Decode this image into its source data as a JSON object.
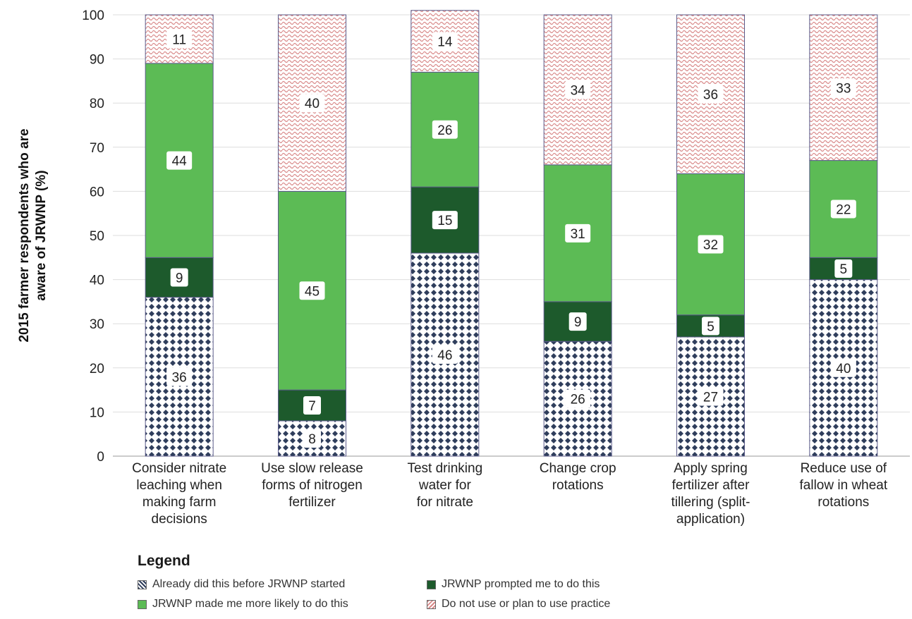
{
  "chart_data": {
    "type": "bar",
    "stacked": true,
    "ylabel": "2015 farmer respondents who are aware of JRWNP (%)",
    "ylim": [
      0,
      100
    ],
    "yticks": [
      0,
      10,
      20,
      30,
      40,
      50,
      60,
      70,
      80,
      90,
      100
    ],
    "grid": true,
    "categories": [
      "Consider nitrate leaching when making farm decisions",
      "Use slow release forms of nitrogen fertilizer",
      "Test drinking water for for nitrate",
      "Change crop rotations",
      "Apply spring fertilizer after tillering (split-application)",
      "Reduce use of fallow in wheat rotations"
    ],
    "category_lines": [
      [
        "Consider nitrate",
        "leaching when",
        "making farm",
        "decisions"
      ],
      [
        "Use slow release",
        "forms of nitrogen",
        "fertilizer"
      ],
      [
        "Test drinking",
        "water for",
        "for nitrate"
      ],
      [
        "Change crop",
        "rotations"
      ],
      [
        "Apply spring",
        "fertilizer after",
        "tillering (split-",
        "application)"
      ],
      [
        "Reduce use of",
        "fallow in wheat",
        "rotations"
      ]
    ],
    "series": [
      {
        "name": "Already did this before JRWNP started",
        "values": [
          36,
          8,
          46,
          26,
          27,
          40
        ],
        "color": "#2f3e5c",
        "pattern": "dots"
      },
      {
        "name": "JRWNP prompted me to do this",
        "values": [
          9,
          7,
          15,
          9,
          5,
          5
        ],
        "color": "#1d5a2c",
        "pattern": "solid"
      },
      {
        "name": "JRWNP made me more likely to do this",
        "values": [
          44,
          45,
          26,
          31,
          32,
          22
        ],
        "color": "#5cbb55",
        "pattern": "solid"
      },
      {
        "name": "Do not use or plan to use practice",
        "values": [
          11,
          40,
          14,
          34,
          36,
          33
        ],
        "color": "#d98a8a",
        "pattern": "waves"
      }
    ],
    "legend": {
      "title": "Legend",
      "position": "bottom-left"
    }
  }
}
